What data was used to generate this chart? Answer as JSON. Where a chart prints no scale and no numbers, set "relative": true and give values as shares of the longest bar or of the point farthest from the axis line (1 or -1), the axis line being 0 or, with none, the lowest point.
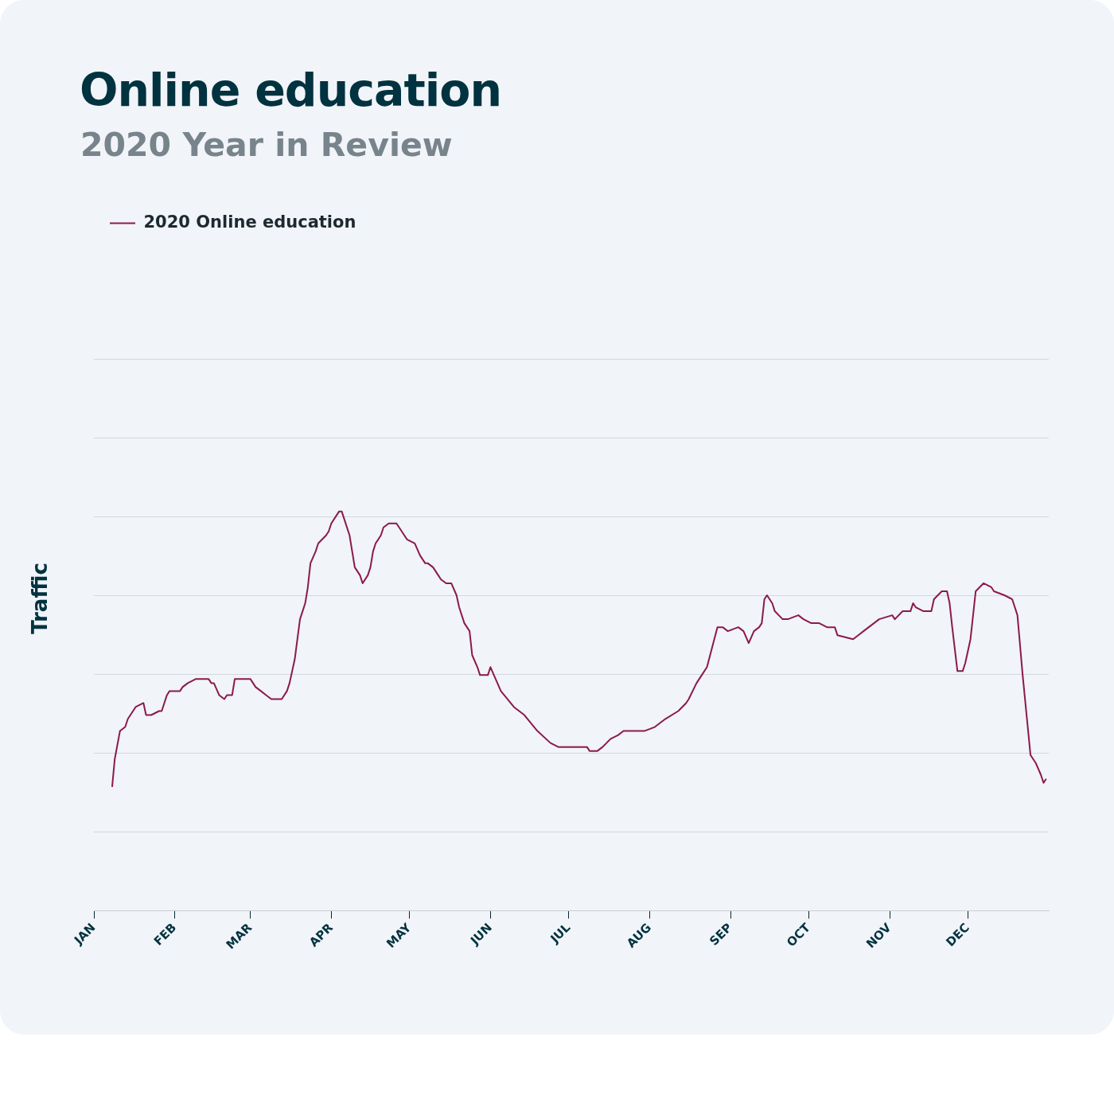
{
  "chart_data": {
    "type": "line",
    "title": "Online education",
    "subtitle": "2020 Year in Review",
    "ylabel": "Traffic",
    "relative": true,
    "grid": "y",
    "legend": "top left",
    "marker": "none",
    "line_style": "solid",
    "xlim": [
      "2020-01-01",
      "2021-01-01"
    ],
    "xticks": [
      {
        "value": "2020-01-01",
        "label": "JAN"
      },
      {
        "value": "2020-02-01",
        "label": "FEB"
      },
      {
        "value": "2020-03-01",
        "label": "MAR"
      },
      {
        "value": "2020-04-01",
        "label": "APR"
      },
      {
        "value": "2020-05-01",
        "label": "MAY"
      },
      {
        "value": "2020-06-01",
        "label": "JUN"
      },
      {
        "value": "2020-07-01",
        "label": "JUL"
      },
      {
        "value": "2020-08-01",
        "label": "AUG"
      },
      {
        "value": "2020-09-01",
        "label": "SEP"
      },
      {
        "value": "2020-10-01",
        "label": "OCT"
      },
      {
        "value": "2020-11-01",
        "label": "NOV"
      },
      {
        "value": "2020-12-01",
        "label": "DEC"
      }
    ],
    "x": [
      "2020-01-08",
      "2020-01-09",
      "2020-01-11",
      "2020-01-13",
      "2020-01-14",
      "2020-01-16",
      "2020-01-17",
      "2020-01-20",
      "2020-01-21",
      "2020-01-23",
      "2020-01-26",
      "2020-01-27",
      "2020-01-29",
      "2020-01-30",
      "2020-02-01",
      "2020-02-03",
      "2020-02-04",
      "2020-02-06",
      "2020-02-09",
      "2020-02-11",
      "2020-02-13",
      "2020-02-14",
      "2020-02-15",
      "2020-02-16",
      "2020-02-18",
      "2020-02-20",
      "2020-02-21",
      "2020-02-23",
      "2020-02-24",
      "2020-02-25",
      "2020-02-27",
      "2020-03-01",
      "2020-03-03",
      "2020-03-05",
      "2020-03-07",
      "2020-03-09",
      "2020-03-11",
      "2020-03-13",
      "2020-03-15",
      "2020-03-16",
      "2020-03-18",
      "2020-03-19",
      "2020-03-20",
      "2020-03-22",
      "2020-03-23",
      "2020-03-24",
      "2020-03-26",
      "2020-03-27",
      "2020-03-30",
      "2020-03-31",
      "2020-04-01",
      "2020-04-03",
      "2020-04-04",
      "2020-04-05",
      "2020-04-06",
      "2020-04-08",
      "2020-04-09",
      "2020-04-10",
      "2020-04-12",
      "2020-04-13",
      "2020-04-15",
      "2020-04-16",
      "2020-04-17",
      "2020-04-18",
      "2020-04-20",
      "2020-04-21",
      "2020-04-23",
      "2020-04-24",
      "2020-04-26",
      "2020-04-27",
      "2020-04-29",
      "2020-04-30",
      "2020-05-03",
      "2020-05-05",
      "2020-05-07",
      "2020-05-08",
      "2020-05-10",
      "2020-05-12",
      "2020-05-13",
      "2020-05-15",
      "2020-05-17",
      "2020-05-19",
      "2020-05-20",
      "2020-05-22",
      "2020-05-24",
      "2020-05-25",
      "2020-05-27",
      "2020-05-28",
      "2020-05-30",
      "2020-05-31",
      "2020-06-01",
      "2020-06-05",
      "2020-06-10",
      "2020-06-12",
      "2020-06-14",
      "2020-06-19",
      "2020-06-24",
      "2020-06-27",
      "2020-06-30",
      "2020-07-02",
      "2020-07-03",
      "2020-07-06",
      "2020-07-08",
      "2020-07-09",
      "2020-07-12",
      "2020-07-14",
      "2020-07-17",
      "2020-07-20",
      "2020-07-22",
      "2020-07-24",
      "2020-07-30",
      "2020-08-03",
      "2020-08-07",
      "2020-08-12",
      "2020-08-15",
      "2020-08-16",
      "2020-08-19",
      "2020-08-21",
      "2020-08-23",
      "2020-08-27",
      "2020-08-29",
      "2020-08-31",
      "2020-09-04",
      "2020-09-06",
      "2020-09-08",
      "2020-09-10",
      "2020-09-12",
      "2020-09-13",
      "2020-09-14",
      "2020-09-15",
      "2020-09-17",
      "2020-09-18",
      "2020-09-21",
      "2020-09-23",
      "2020-09-27",
      "2020-09-29",
      "2020-10-02",
      "2020-10-05",
      "2020-10-08",
      "2020-10-11",
      "2020-10-12",
      "2020-10-18",
      "2020-10-20",
      "2020-10-22",
      "2020-10-28",
      "2020-11-02",
      "2020-11-03",
      "2020-11-06",
      "2020-11-09",
      "2020-11-10",
      "2020-11-11",
      "2020-11-14",
      "2020-11-17",
      "2020-11-18",
      "2020-11-21",
      "2020-11-23",
      "2020-11-24",
      "2020-11-25",
      "2020-11-27",
      "2020-11-29",
      "2020-11-30",
      "2020-12-02",
      "2020-12-04",
      "2020-12-07",
      "2020-12-10",
      "2020-12-11",
      "2020-12-15",
      "2020-12-18",
      "2020-12-20",
      "2020-12-22",
      "2020-12-25",
      "2020-12-27",
      "2020-12-29",
      "2020-12-30",
      "2020-12-31"
    ],
    "series": [
      {
        "name": "2020 Online education",
        "color": "#8b1a4a",
        "values": [
          0.31,
          0.38,
          0.45,
          0.46,
          0.48,
          0.5,
          0.51,
          0.52,
          0.49,
          0.49,
          0.5,
          0.5,
          0.54,
          0.55,
          0.55,
          0.55,
          0.56,
          0.57,
          0.58,
          0.58,
          0.58,
          0.58,
          0.57,
          0.57,
          0.54,
          0.53,
          0.54,
          0.54,
          0.58,
          0.58,
          0.58,
          0.58,
          0.56,
          0.55,
          0.54,
          0.53,
          0.53,
          0.53,
          0.55,
          0.57,
          0.63,
          0.68,
          0.73,
          0.77,
          0.81,
          0.87,
          0.9,
          0.92,
          0.94,
          0.95,
          0.97,
          0.99,
          1.0,
          1.0,
          0.98,
          0.94,
          0.9,
          0.86,
          0.84,
          0.82,
          0.84,
          0.86,
          0.9,
          0.92,
          0.94,
          0.96,
          0.97,
          0.97,
          0.97,
          0.96,
          0.94,
          0.93,
          0.92,
          0.89,
          0.87,
          0.87,
          0.86,
          0.84,
          0.83,
          0.82,
          0.82,
          0.79,
          0.76,
          0.72,
          0.7,
          0.64,
          0.61,
          0.59,
          0.59,
          0.59,
          0.61,
          0.55,
          0.51,
          0.5,
          0.49,
          0.45,
          0.42,
          0.41,
          0.41,
          0.41,
          0.41,
          0.41,
          0.41,
          0.4,
          0.4,
          0.41,
          0.43,
          0.44,
          0.45,
          0.45,
          0.45,
          0.46,
          0.48,
          0.5,
          0.52,
          0.53,
          0.57,
          0.59,
          0.61,
          0.71,
          0.71,
          0.7,
          0.71,
          0.7,
          0.67,
          0.7,
          0.71,
          0.72,
          0.78,
          0.79,
          0.77,
          0.75,
          0.73,
          0.73,
          0.74,
          0.73,
          0.72,
          0.72,
          0.71,
          0.71,
          0.69,
          0.68,
          0.69,
          0.7,
          0.73,
          0.74,
          0.73,
          0.75,
          0.75,
          0.77,
          0.76,
          0.75,
          0.75,
          0.78,
          0.8,
          0.8,
          0.77,
          0.71,
          0.6,
          0.6,
          0.62,
          0.68,
          0.8,
          0.82,
          0.81,
          0.8,
          0.79,
          0.78,
          0.74,
          0.59,
          0.39,
          0.37,
          0.34,
          0.32,
          0.33
        ]
      }
    ]
  }
}
